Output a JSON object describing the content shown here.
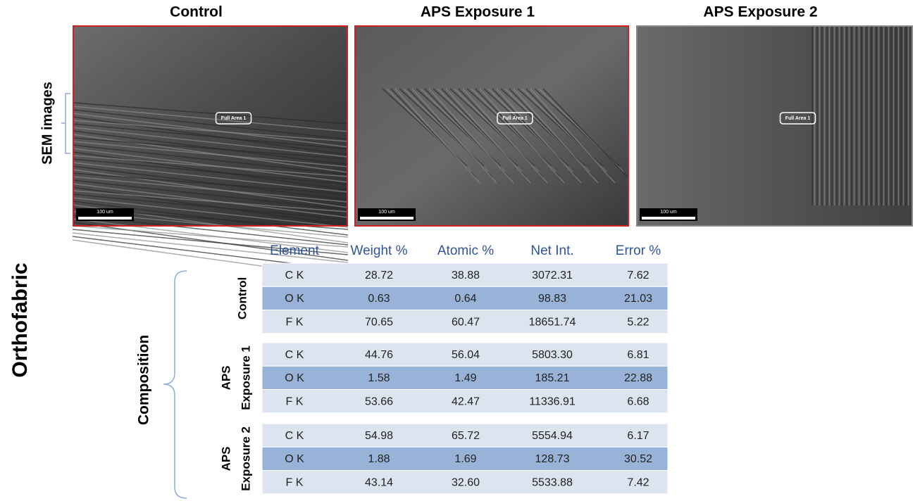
{
  "column_titles": [
    "Control",
    "APS Exposure 1",
    "APS Exposure 2"
  ],
  "side_labels": {
    "sem": "SEM images",
    "sample": "Orthofabric",
    "composition": "Composition"
  },
  "images": [
    {
      "region_label": "Full Area 1",
      "scale_bar": "100 um"
    },
    {
      "region_label": "Full Area 1",
      "scale_bar": "100 um"
    },
    {
      "region_label": "Full Area 1",
      "scale_bar": "100 um"
    }
  ],
  "table": {
    "header": [
      "Element",
      "Weight %",
      "Atomic %",
      "Net Int.",
      "Error %"
    ],
    "groups": [
      {
        "label": [
          "Control"
        ],
        "rows": [
          [
            "C K",
            "28.72",
            "38.88",
            "3072.31",
            "7.62"
          ],
          [
            "O K",
            "0.63",
            "0.64",
            "98.83",
            "21.03"
          ],
          [
            "F K",
            "70.65",
            "60.47",
            "18651.74",
            "5.22"
          ]
        ]
      },
      {
        "label": [
          "APS",
          "Exposure 1"
        ],
        "rows": [
          [
            "C K",
            "44.76",
            "56.04",
            "5803.30",
            "6.81"
          ],
          [
            "O K",
            "1.58",
            "1.49",
            "185.21",
            "22.88"
          ],
          [
            "F K",
            "53.66",
            "42.47",
            "11336.91",
            "6.68"
          ]
        ]
      },
      {
        "label": [
          "APS",
          "Exposure 2"
        ],
        "rows": [
          [
            "C K",
            "54.98",
            "65.72",
            "5554.94",
            "6.17"
          ],
          [
            "O K",
            "1.88",
            "1.69",
            "128.73",
            "30.52"
          ],
          [
            "F K",
            "43.14",
            "32.60",
            "5533.88",
            "7.42"
          ]
        ]
      }
    ]
  }
}
